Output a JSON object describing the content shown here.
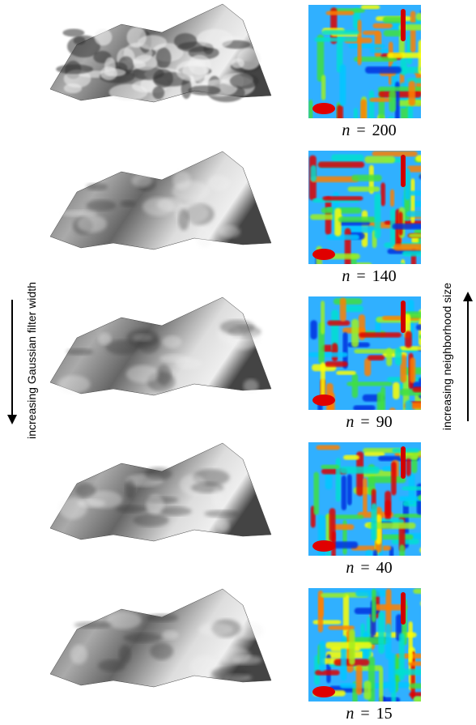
{
  "panels": [
    {
      "symbol": "n",
      "relation": "=",
      "value": "200"
    },
    {
      "symbol": "n",
      "relation": "=",
      "value": "140"
    },
    {
      "symbol": "n",
      "relation": "=",
      "value": "90"
    },
    {
      "symbol": "n",
      "relation": "=",
      "value": "40"
    },
    {
      "symbol": "n",
      "relation": "=",
      "value": "15"
    }
  ],
  "left_label": "increasing Gaussian filter width",
  "right_label": "increasing neighborhood size"
}
